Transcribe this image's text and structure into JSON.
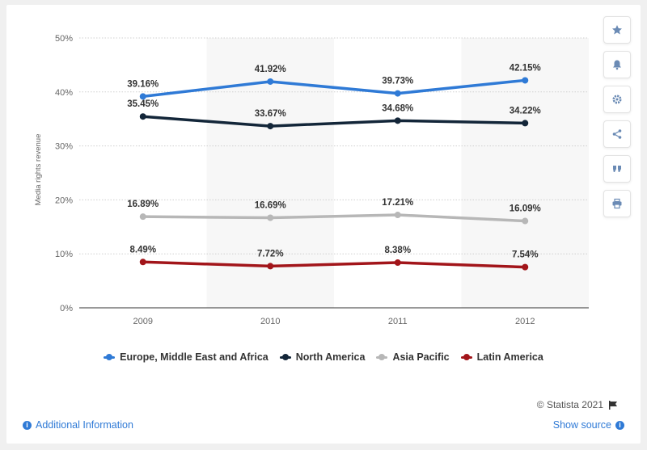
{
  "chart_data": {
    "type": "line",
    "categories": [
      "2009",
      "2010",
      "2011",
      "2012"
    ],
    "ylabel": "Media rights revenue",
    "ylim": [
      0,
      50
    ],
    "yticks": [
      0,
      10,
      20,
      30,
      40,
      50
    ],
    "ytick_labels": [
      "0%",
      "10%",
      "20%",
      "30%",
      "40%",
      "50%"
    ],
    "grid": true,
    "legend_position": "bottom",
    "series": [
      {
        "name": "Europe, Middle East and Africa",
        "color": "#2f7ad6",
        "values": [
          39.16,
          41.92,
          39.73,
          42.15
        ],
        "labels": [
          "39.16%",
          "41.92%",
          "39.73%",
          "42.15%"
        ]
      },
      {
        "name": "North America",
        "color": "#132639",
        "values": [
          35.45,
          33.67,
          34.68,
          34.22
        ],
        "labels": [
          "35.45%",
          "33.67%",
          "34.68%",
          "34.22%"
        ]
      },
      {
        "name": "Asia Pacific",
        "color": "#b7b7b7",
        "values": [
          16.89,
          16.69,
          17.21,
          16.09
        ],
        "labels": [
          "16.89%",
          "16.69%",
          "17.21%",
          "16.09%"
        ]
      },
      {
        "name": "Latin America",
        "color": "#a2151a",
        "values": [
          8.49,
          7.72,
          8.38,
          7.54
        ],
        "labels": [
          "8.49%",
          "7.72%",
          "8.38%",
          "7.54%"
        ]
      }
    ]
  },
  "toolbar": {
    "icons": [
      "star-icon",
      "bell-icon",
      "gear-icon",
      "share-icon",
      "quote-icon",
      "print-icon"
    ]
  },
  "footer": {
    "copyright": "© Statista 2021",
    "additional_info": "Additional Information",
    "show_source": "Show source"
  }
}
